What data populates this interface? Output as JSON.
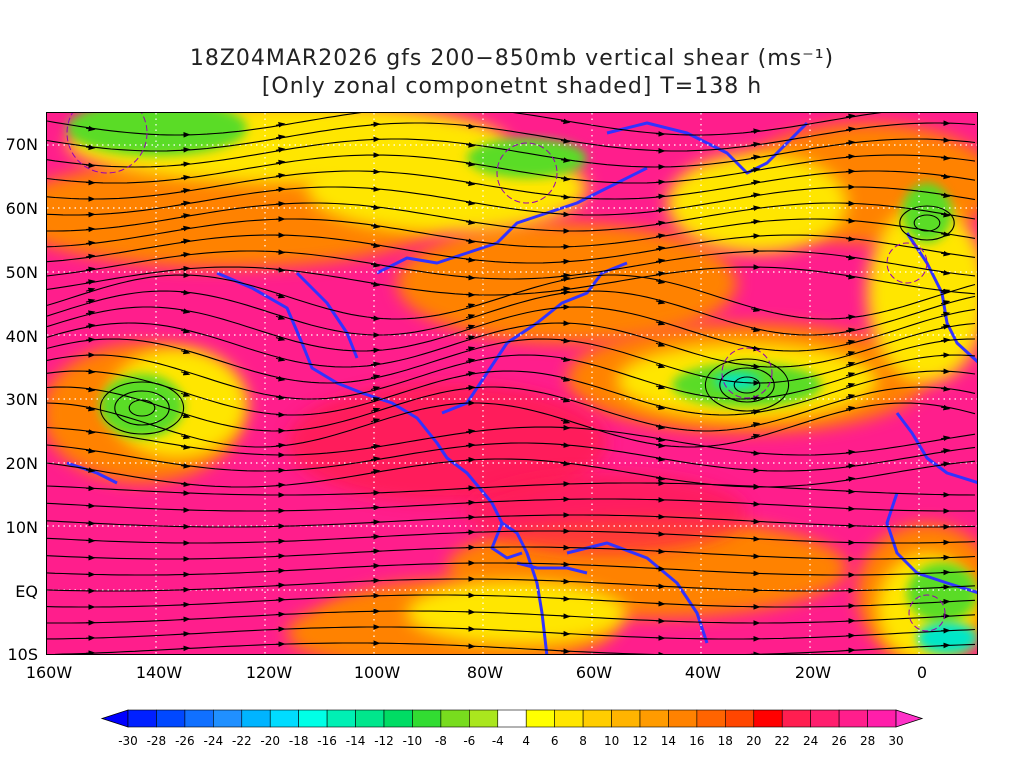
{
  "title": {
    "line1": "18Z04MAR2026 gfs 200−850mb vertical shear (ms⁻¹)",
    "line2": "[Only zonal componetnt shaded] T=138 h"
  },
  "lat_labels": [
    "70N",
    "60N",
    "50N",
    "40N",
    "30N",
    "20N",
    "10N",
    "EQ",
    "10S"
  ],
  "lon_labels": [
    "160W",
    "140W",
    "120W",
    "100W",
    "80W",
    "60W",
    "40W",
    "20W",
    "0"
  ],
  "colorbar": {
    "labels": [
      "-30",
      "-28",
      "-26",
      "-24",
      "-22",
      "-20",
      "-18",
      "-16",
      "-14",
      "-12",
      "-10",
      "-8",
      "-6",
      "-4",
      "4",
      "6",
      "8",
      "10",
      "12",
      "14",
      "16",
      "18",
      "20",
      "22",
      "24",
      "26",
      "28",
      "30"
    ],
    "colors": [
      "#0020ff",
      "#0048ff",
      "#1070ff",
      "#2090ff",
      "#00b4ff",
      "#00dcff",
      "#00ffe6",
      "#00f0b4",
      "#00e68c",
      "#00dc64",
      "#32dc32",
      "#78dc1e",
      "#aae61e",
      "#ffffff",
      "#ffff00",
      "#ffe600",
      "#ffcd00",
      "#ffb400",
      "#ff9b00",
      "#ff8200",
      "#ff6400",
      "#ff4600",
      "#ff0000",
      "#ff1e50",
      "#ff1e6e",
      "#ff1e8c",
      "#ff1eaa"
    ],
    "under_color": "#0000ff",
    "over_color": "#ff32c8"
  },
  "field_colors": {
    "strong": "#ff1e8c",
    "red": "#ff1e50",
    "orange": "#ff8200",
    "yellow": "#ffe600",
    "green": "#5adc28",
    "cyan": "#00e6c8",
    "coast": "#3232ff",
    "contour": "#9600b4",
    "stream": "#000000",
    "grid": "#ffffff"
  }
}
